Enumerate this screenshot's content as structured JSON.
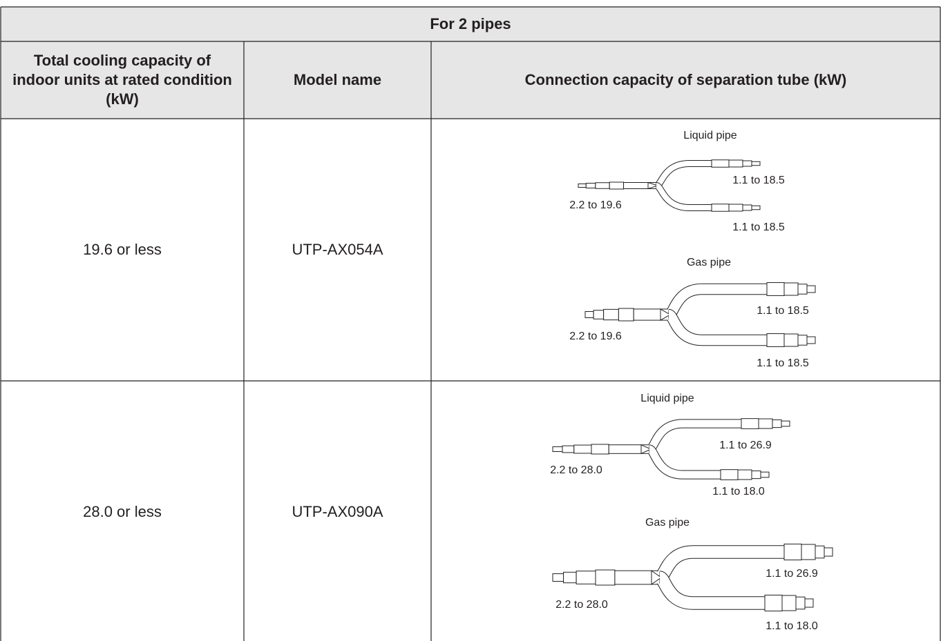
{
  "table": {
    "title": "For 2 pipes",
    "headers": [
      "Total cooling capacity of indoor units at rated condition (kW)",
      "Model name",
      "Connection capacity of separation tube (kW)"
    ],
    "rows": [
      {
        "capacity": "19.6 or less",
        "model": "UTP-AX054A",
        "liquid": {
          "label": "Liquid pipe",
          "inlet": "2.2 to 19.6",
          "outlets": [
            "1.1 to 18.5",
            "1.1 to 18.5"
          ]
        },
        "gas": {
          "label": "Gas pipe",
          "inlet": "2.2 to 19.6",
          "outlets": [
            "1.1 to 18.5",
            "1.1 to 18.5"
          ]
        }
      },
      {
        "capacity": "28.0 or less",
        "model": "UTP-AX090A",
        "liquid": {
          "label": "Liquid pipe",
          "inlet": "2.2 to 28.0",
          "outlets": [
            "1.1 to 26.9",
            "1.1 to 18.0"
          ]
        },
        "gas": {
          "label": "Gas pipe",
          "inlet": "2.2 to 28.0",
          "outlets": [
            "1.1 to 26.9",
            "1.1 to 18.0"
          ]
        }
      }
    ]
  }
}
